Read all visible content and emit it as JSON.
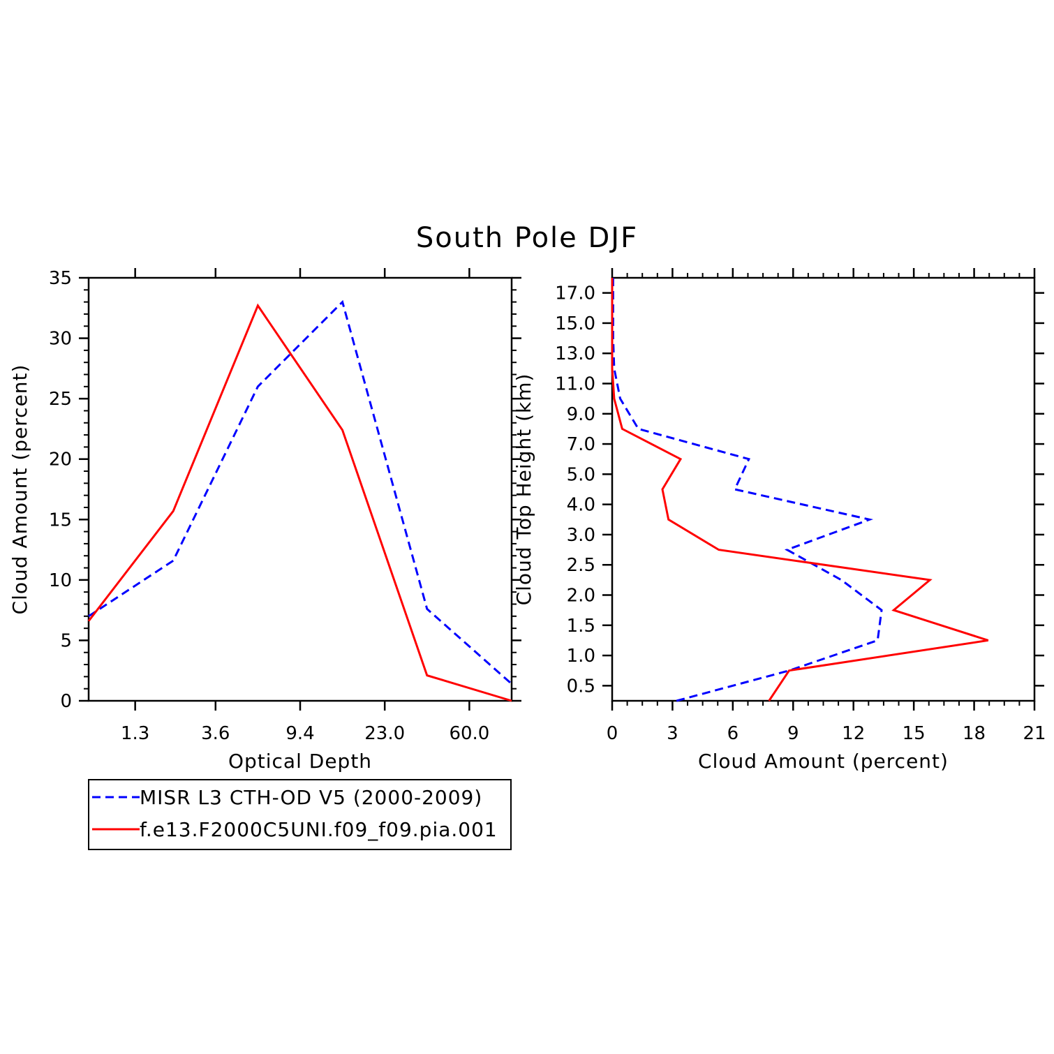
{
  "title": "South Pole DJF",
  "colors": {
    "misr": "#0000ff",
    "model": "#ff0000",
    "axis": "#000000"
  },
  "legend": [
    {
      "label": "MISR L3 CTH-OD V5 (2000-2009)",
      "color": "#0000ff",
      "dash": true
    },
    {
      "label": "f.e13.F2000C5UNI.f09_f09.pia.001",
      "color": "#ff0000",
      "dash": false
    }
  ],
  "chart_data": [
    {
      "type": "line",
      "xlabel": "Optical Depth",
      "ylabel": "Cloud Amount (percent)",
      "xlim": [
        0,
        5
      ],
      "ylim": [
        0,
        35
      ],
      "xticks": [
        {
          "v": 0.55,
          "label": "1.3"
        },
        {
          "v": 1.5,
          "label": "3.6"
        },
        {
          "v": 2.5,
          "label": "9.4"
        },
        {
          "v": 3.5,
          "label": "23.0"
        },
        {
          "v": 4.5,
          "label": "60.0"
        }
      ],
      "yticks": [
        0,
        5,
        10,
        15,
        20,
        25,
        30,
        35
      ],
      "series": [
        {
          "name": "MISR L3 CTH-OD V5 (2000-2009)",
          "color": "#0000ff",
          "dash": true,
          "x": [
            0,
            1,
            2,
            3,
            4,
            5
          ],
          "y": [
            7.0,
            11.6,
            26.0,
            33.0,
            7.6,
            1.4
          ]
        },
        {
          "name": "f.e13.F2000C5UNI.f09_f09.pia.001",
          "color": "#ff0000",
          "dash": false,
          "x": [
            0,
            1,
            2,
            3,
            4,
            5
          ],
          "y": [
            6.6,
            15.7,
            32.7,
            22.4,
            2.1,
            0.0
          ]
        }
      ]
    },
    {
      "type": "line",
      "xlabel": "Cloud Amount (percent)",
      "ylabel": "Cloud Top Height (km)",
      "xlim": [
        0,
        21
      ],
      "ylim": [
        0,
        14
      ],
      "xticks": [
        0,
        3,
        6,
        9,
        12,
        15,
        18,
        21
      ],
      "yticks": [
        {
          "v": 0.5,
          "label": "0.5"
        },
        {
          "v": 1.5,
          "label": "1.0"
        },
        {
          "v": 2.5,
          "label": "1.5"
        },
        {
          "v": 3.5,
          "label": "2.0"
        },
        {
          "v": 4.5,
          "label": "2.5"
        },
        {
          "v": 5.5,
          "label": "3.0"
        },
        {
          "v": 6.5,
          "label": "4.0"
        },
        {
          "v": 7.5,
          "label": "5.0"
        },
        {
          "v": 8.5,
          "label": "7.0"
        },
        {
          "v": 9.5,
          "label": "9.0"
        },
        {
          "v": 10.5,
          "label": "11.0"
        },
        {
          "v": 11.5,
          "label": "13.0"
        },
        {
          "v": 12.5,
          "label": "15.0"
        },
        {
          "v": 13.5,
          "label": "17.0"
        }
      ],
      "series": [
        {
          "name": "MISR L3 CTH-OD V5 (2000-2009)",
          "color": "#0000ff",
          "dash": true,
          "x": [
            3.2,
            8.8,
            13.2,
            13.4,
            11.4,
            8.7,
            12.8,
            6.1,
            6.8,
            1.3,
            0.4,
            0.1,
            0.05,
            0.05,
            0.05
          ],
          "y": [
            0,
            1.0,
            2.0,
            3.0,
            4.0,
            5.0,
            6.0,
            7.0,
            8.0,
            9.0,
            10.0,
            11.0,
            12.0,
            13.0,
            14.0
          ]
        },
        {
          "name": "f.e13.F2000C5UNI.f09_f09.pia.001",
          "color": "#ff0000",
          "dash": false,
          "x": [
            7.8,
            8.8,
            18.7,
            14.0,
            15.8,
            5.3,
            2.8,
            2.5,
            3.4,
            0.5,
            0.1,
            0.0,
            0.0,
            0.0,
            0.0
          ],
          "y": [
            0,
            1.0,
            2.0,
            3.0,
            4.0,
            5.0,
            6.0,
            7.0,
            8.0,
            9.0,
            10.0,
            11.0,
            12.0,
            13.0,
            14.0
          ]
        }
      ]
    }
  ]
}
